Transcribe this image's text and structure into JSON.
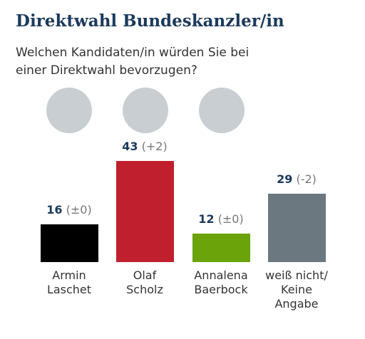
{
  "chart_data": {
    "type": "bar",
    "title": "Direktwahl Bundeskanzler/in",
    "subtitle": "Welchen Kandidaten/in würden Sie bei\neiner Direktwahl bevorzugen?",
    "categories": [
      "Armin\nLaschet",
      "Olaf\nScholz",
      "Annalena\nBaerbock",
      "weiß nicht/\nKeine\nAngabe"
    ],
    "values": [
      16,
      43,
      12,
      29
    ],
    "changes": [
      "(±0)",
      "(+2)",
      "(±0)",
      "(-2)"
    ],
    "colors": [
      "#000000",
      "#c0202e",
      "#6aa30a",
      "#6b7880"
    ]
  }
}
